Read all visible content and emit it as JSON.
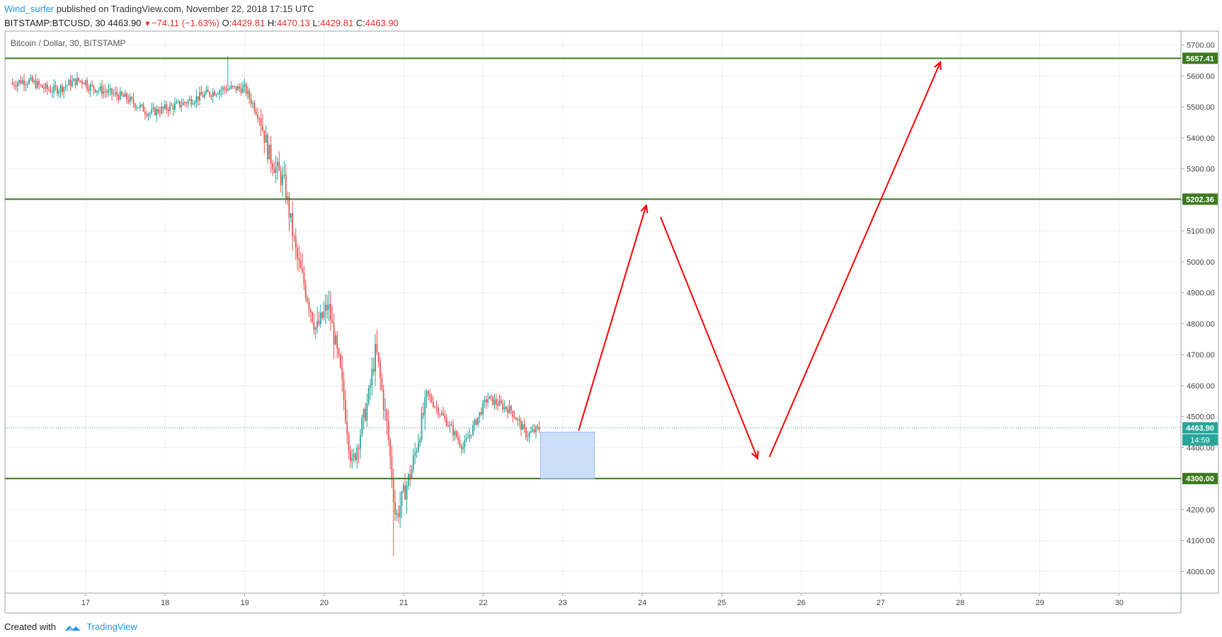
{
  "header": {
    "author": "Wind_surfer",
    "published_text": "published on TradingView.com, November 22, 2018 17:15 UTC",
    "symbol": "BITSTAMP:BTCUSD, 30",
    "last": "4463.90",
    "change": "−74.11 (−1.63%)",
    "o_label": "O:",
    "o": "4429.81",
    "h_label": "H:",
    "h": "4470.13",
    "l_label": "L:",
    "l": "4429.81",
    "c_label": "C:",
    "c": "4463.90"
  },
  "footer": {
    "created_with": "Created with",
    "brand": "TradingView",
    "logo_icon": "tradingview-logo-icon"
  },
  "chart_data": {
    "type": "candlestick",
    "title": "Bitcoin / Dollar, 30, BITSTAMP",
    "interval_minutes": 30,
    "x_ticks": [
      "17",
      "18",
      "19",
      "20",
      "21",
      "22",
      "23",
      "24",
      "25",
      "26",
      "27",
      "28",
      "29",
      "30"
    ],
    "x_range": [
      "Nov 16 00:00",
      "Nov 30 07:00"
    ],
    "y_ticks": [
      "4000.00",
      "4100.00",
      "4200.00",
      "4300.00",
      "4400.00",
      "4500.00",
      "4600.00",
      "4700.00",
      "4800.00",
      "4900.00",
      "5000.00",
      "5100.00",
      "5200.00",
      "5300.00",
      "5400.00",
      "5500.00",
      "5600.00",
      "5700.00"
    ],
    "ylim": [
      3930,
      5745
    ],
    "grid": true,
    "price_path": [
      {
        "t": 17.0,
        "p": 5570
      },
      {
        "t": 17.5,
        "p": 5530
      },
      {
        "t": 17.8,
        "p": 5480
      },
      {
        "t": 18.2,
        "p": 5510
      },
      {
        "t": 18.5,
        "p": 5540
      },
      {
        "t": 18.75,
        "p": 5560
      },
      {
        "t": 19.0,
        "p": 5560
      },
      {
        "t": 19.2,
        "p": 5460
      },
      {
        "t": 19.3,
        "p": 5350
      },
      {
        "t": 19.5,
        "p": 5250
      },
      {
        "t": 19.65,
        "p": 5020
      },
      {
        "t": 19.9,
        "p": 4780
      },
      {
        "t": 20.05,
        "p": 4860
      },
      {
        "t": 20.2,
        "p": 4650
      },
      {
        "t": 20.35,
        "p": 4340
      },
      {
        "t": 20.55,
        "p": 4550
      },
      {
        "t": 20.65,
        "p": 4720
      },
      {
        "t": 20.8,
        "p": 4450
      },
      {
        "t": 20.9,
        "p": 4170
      },
      {
        "t": 21.1,
        "p": 4330
      },
      {
        "t": 21.3,
        "p": 4570
      },
      {
        "t": 21.55,
        "p": 4480
      },
      {
        "t": 21.75,
        "p": 4400
      },
      {
        "t": 22.05,
        "p": 4560
      },
      {
        "t": 22.35,
        "p": 4520
      },
      {
        "t": 22.55,
        "p": 4440
      },
      {
        "t": 22.72,
        "p": 4464
      }
    ],
    "extremes": {
      "high": {
        "t": 18.78,
        "p": 5665
      },
      "low": {
        "t": 20.87,
        "p": 4050
      }
    },
    "horizontal_levels": [
      {
        "value": 5657.41,
        "label": "5657.41",
        "color": "#3d7a1f"
      },
      {
        "value": 5202.36,
        "label": "5202.36",
        "color": "#3d7a1f"
      },
      {
        "value": 4300.0,
        "label": "4300.00",
        "color": "#3d7a1f"
      }
    ],
    "last_price": {
      "value": 4463.9,
      "label": "4463.90",
      "countdown": "14:59",
      "color": "#26a69a"
    },
    "projection_box": {
      "t1": 22.72,
      "t2": 23.4,
      "p1": 4300,
      "p2": 4450,
      "color": "#bbd4f7"
    },
    "projection_path": [
      {
        "t": 23.2,
        "p": 4455
      },
      {
        "t": 24.05,
        "p": 5182
      },
      {
        "t": 24.23,
        "p": 5145
      },
      {
        "t": 25.45,
        "p": 4365
      },
      {
        "t": 25.6,
        "p": 4370
      },
      {
        "t": 27.75,
        "p": 5645
      }
    ],
    "up_color": "#26a69a",
    "down_color": "#ef5350",
    "projection_color": "#ff0000",
    "legend": "none"
  }
}
